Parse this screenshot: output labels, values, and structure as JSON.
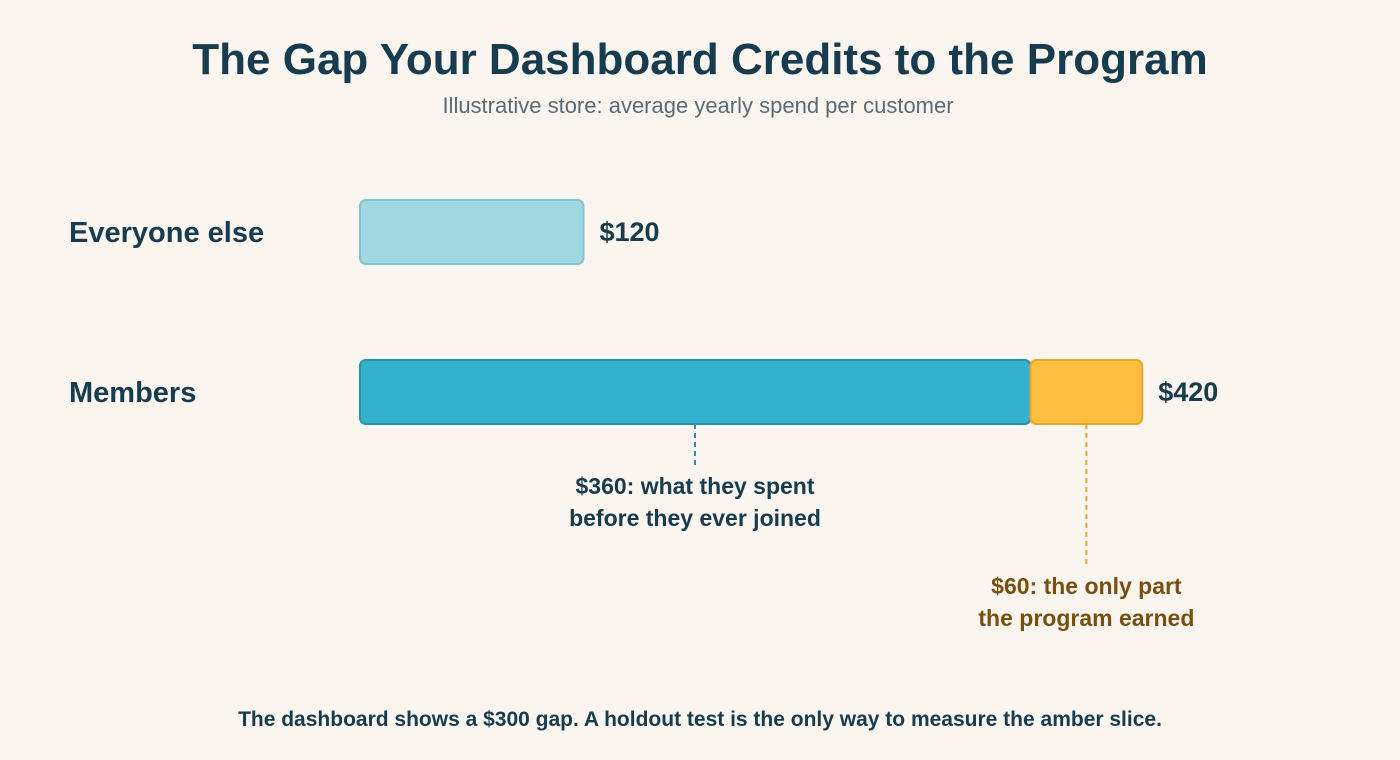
{
  "chart_data": {
    "type": "bar",
    "orientation": "horizontal",
    "stacked": true,
    "title": "The Gap Your Dashboard Credits to the Program",
    "subtitle": "Illustrative store: average yearly spend per customer",
    "categories": [
      "Everyone else",
      "Members"
    ],
    "series": [
      {
        "values": [
          120,
          360
        ],
        "color": "#35b1cd"
      },
      {
        "values": [
          0,
          60
        ],
        "color": "#fdbd40"
      }
    ],
    "colors": {
      "everyone_else_fill": "#a2d8e1",
      "members_base_fill": "#35b1cd",
      "members_gain_fill": "#fdbd40"
    },
    "totals": [
      120,
      420
    ],
    "value_labels": [
      "$120",
      "$420"
    ],
    "annotations": {
      "base": [
        "$360: what they spent",
        "before they ever joined"
      ],
      "gain": [
        "$60: the only part",
        "the program earned"
      ]
    },
    "footnote": "The dashboard shows a $300 gap. A holdout test is the only way to measure the amber slice."
  }
}
